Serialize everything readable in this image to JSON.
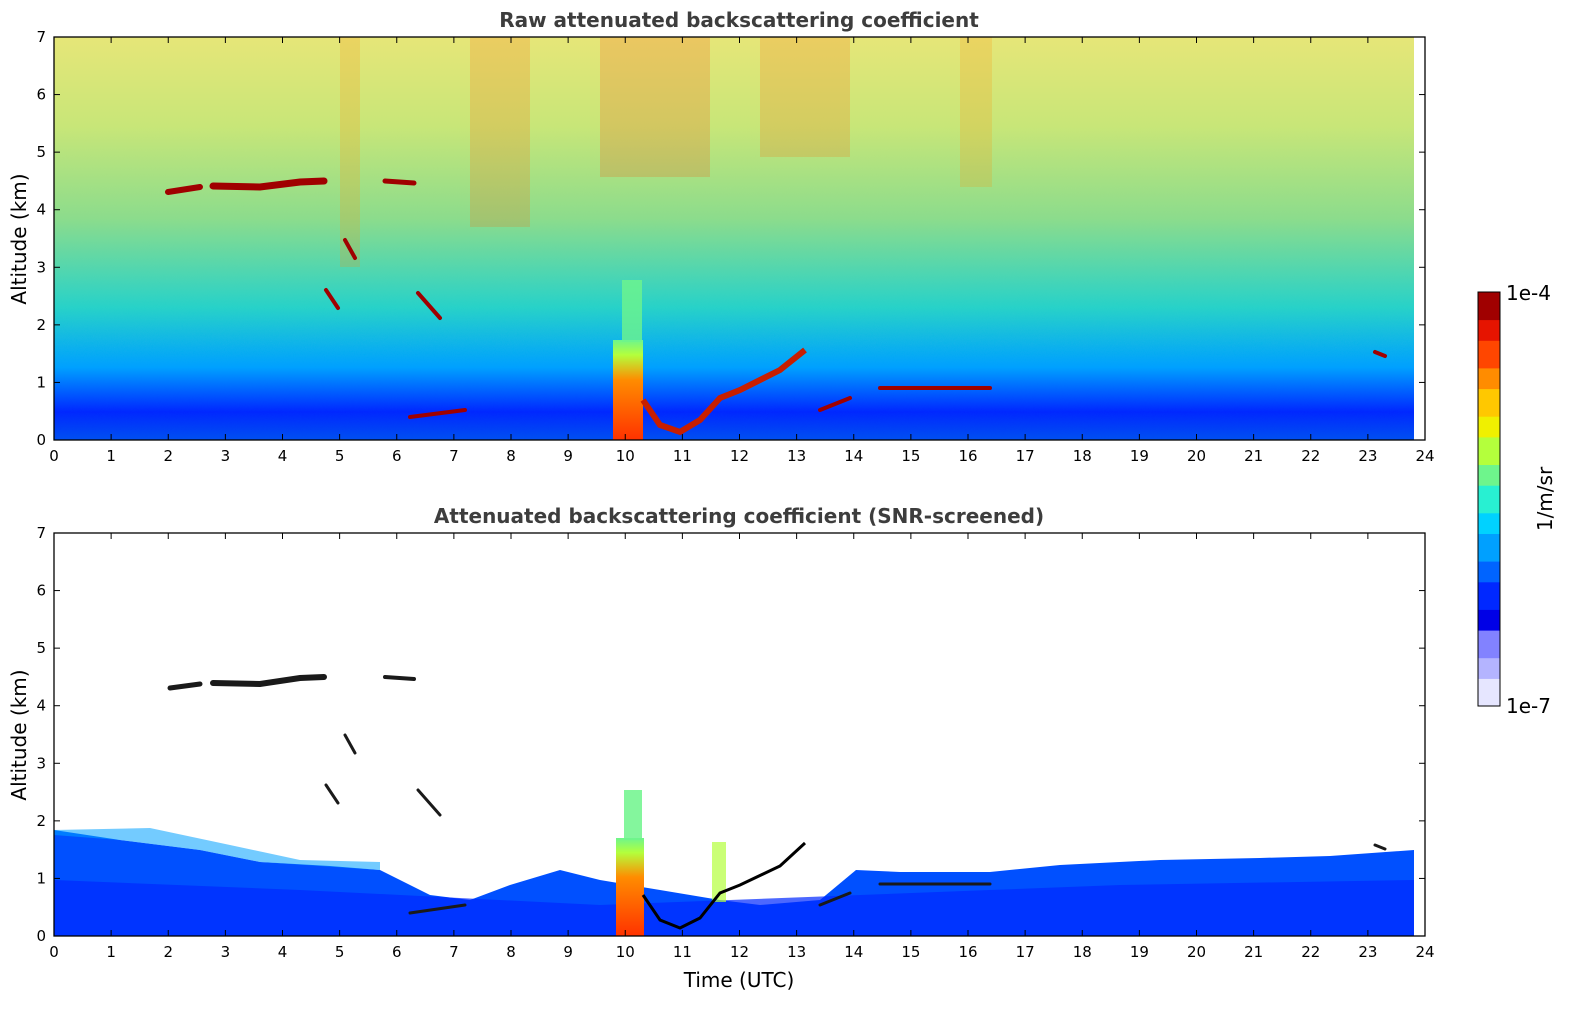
{
  "colors": {
    "colormap": [
      "#e6e6ff",
      "#b4b4ff",
      "#8282ff",
      "#0000e6",
      "#0028ff",
      "#0064ff",
      "#00a0ff",
      "#00d2ff",
      "#28f0d2",
      "#6ef58c",
      "#b4ff3c",
      "#f0f000",
      "#ffc800",
      "#ff8c00",
      "#ff4600",
      "#e61400",
      "#a00000"
    ],
    "axis": "#000000",
    "title": "#3d3d3d"
  },
  "chart_data": [
    {
      "type": "heatmap",
      "title": "Raw attenuated backscattering coefficient",
      "xlabel": "",
      "ylabel": "Altitude (km)",
      "xlim": [
        0,
        24
      ],
      "ylim": [
        0,
        7
      ],
      "xticks": [
        "0",
        "1",
        "2",
        "3",
        "4",
        "5",
        "6",
        "7",
        "8",
        "9",
        "10",
        "11",
        "12",
        "13",
        "14",
        "15",
        "16",
        "17",
        "18",
        "19",
        "20",
        "21",
        "22",
        "23",
        "24"
      ],
      "yticks": [
        "0",
        "1",
        "2",
        "3",
        "4",
        "5",
        "6",
        "7"
      ],
      "data_end_time": 23.8,
      "cloud_layers": [
        {
          "x": [
            2.0,
            2.5
          ],
          "y": 4.25
        },
        {
          "x": [
            2.8,
            4.7
          ],
          "y": 4.45
        },
        {
          "x": [
            6.0,
            6.3
          ],
          "y": 4.5
        },
        {
          "x": [
            5.0,
            5.3
          ],
          "y": 3.3
        },
        {
          "x": [
            6.6,
            6.9
          ],
          "y": 2.3
        },
        {
          "x": [
            6.6,
            7.3
          ],
          "y": 0.45
        },
        {
          "x": [
            9.8,
            10.5
          ],
          "y": 1.0
        },
        {
          "x": [
            10.5,
            11.5
          ],
          "y": 0.2
        },
        {
          "x": [
            11.5,
            13.1
          ],
          "y": 1.2
        },
        {
          "x": [
            14.5,
            16.4
          ],
          "y": 0.9
        },
        {
          "x": [
            23.0,
            23.2
          ],
          "y": 1.5
        }
      ]
    },
    {
      "type": "heatmap",
      "title": "Attenuated backscattering coefficient (SNR-screened)",
      "xlabel": "Time (UTC)",
      "ylabel": "Altitude (km)",
      "xlim": [
        0,
        24
      ],
      "ylim": [
        0,
        7
      ],
      "xticks": [
        "0",
        "1",
        "2",
        "3",
        "4",
        "5",
        "6",
        "7",
        "8",
        "9",
        "10",
        "11",
        "12",
        "13",
        "14",
        "15",
        "16",
        "17",
        "18",
        "19",
        "20",
        "21",
        "22",
        "23",
        "24"
      ],
      "yticks": [
        "0",
        "1",
        "2",
        "3",
        "4",
        "5",
        "6",
        "7"
      ],
      "data_end_time": 23.8,
      "colorbar": {
        "label": "1/m/sr",
        "min_label": "1e-7",
        "max_label": "1e-4",
        "scale": "log",
        "range": [
          1e-07,
          0.0001
        ]
      }
    }
  ]
}
